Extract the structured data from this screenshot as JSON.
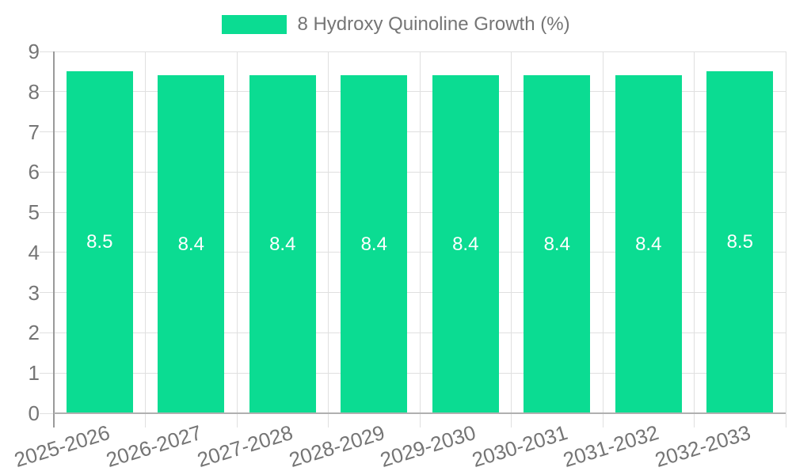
{
  "legend": {
    "label": "8 Hydroxy Quinoline Growth (%)"
  },
  "chart_data": {
    "type": "bar",
    "title": "8 Hydroxy Quinoline Growth (%)",
    "categories": [
      "2025-2026",
      "2026-2027",
      "2027-2028",
      "2028-2029",
      "2029-2030",
      "2030-2031",
      "2031-2032",
      "2032-2033"
    ],
    "series": [
      {
        "name": "8 Hydroxy Quinoline Growth (%)",
        "values": [
          8.5,
          8.4,
          8.4,
          8.4,
          8.4,
          8.4,
          8.4,
          8.5
        ]
      }
    ],
    "value_labels": [
      "8.5",
      "8.4",
      "8.4",
      "8.4",
      "8.4",
      "8.4",
      "8.4",
      "8.5"
    ],
    "xlabel": "",
    "ylabel": "",
    "ylim": [
      0,
      9
    ],
    "y_ticks": [
      "0",
      "1",
      "2",
      "3",
      "4",
      "5",
      "6",
      "7",
      "8",
      "9"
    ],
    "grid": "both",
    "legend_position": "top",
    "colors": {
      "bar": "#0bdc92",
      "axis_text": "#757575",
      "value_label": "#ffffff",
      "grid": "#e0e0e0",
      "axis_line": "#9a9a9a",
      "baseline": "#b0b0b0",
      "background": "#ffffff"
    }
  }
}
